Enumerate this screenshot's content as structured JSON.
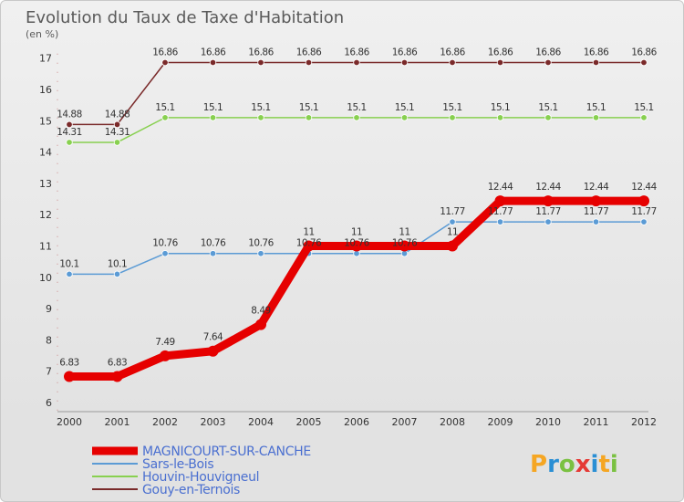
{
  "chart_data": {
    "type": "line",
    "title": "Evolution du Taux de Taxe d'Habitation",
    "subtitle": "(en %)",
    "x": [
      "2000",
      "2001",
      "2002",
      "2003",
      "2004",
      "2005",
      "2006",
      "2007",
      "2008",
      "2009",
      "2010",
      "2011",
      "2012"
    ],
    "ylim": [
      6,
      17
    ],
    "yticks": [
      6,
      7,
      8,
      9,
      10,
      11,
      12,
      13,
      14,
      15,
      16,
      17
    ],
    "grid": false,
    "legend_position": "bottom-left",
    "series": [
      {
        "name": "MAGNICOURT-SUR-CANCHE",
        "color": "#e60000",
        "width": 9,
        "values": [
          6.83,
          6.83,
          7.49,
          7.64,
          8.49,
          11,
          11,
          11,
          11,
          12.44,
          12.44,
          12.44,
          12.44
        ],
        "labels": [
          "6.83",
          "6.83",
          "7.49",
          "7.64",
          "8.49",
          "11",
          "11",
          "11",
          "11",
          "12.44",
          "12.44",
          "12.44",
          "12.44"
        ]
      },
      {
        "name": "Sars-le-Bois",
        "color": "#5b9bd5",
        "width": 1.5,
        "values": [
          10.1,
          10.1,
          10.76,
          10.76,
          10.76,
          10.76,
          10.76,
          10.76,
          11.77,
          11.77,
          11.77,
          11.77,
          11.77
        ],
        "labels": [
          "10.1",
          "10.1",
          "10.76",
          "10.76",
          "10.76",
          "10.76",
          "10.76",
          "10.76",
          "11.77",
          "11.77",
          "11.77",
          "11.77",
          "11.77"
        ]
      },
      {
        "name": "Houvin-Houvigneul",
        "color": "#88d050",
        "width": 1.5,
        "values": [
          14.31,
          14.31,
          15.1,
          15.1,
          15.1,
          15.1,
          15.1,
          15.1,
          15.1,
          15.1,
          15.1,
          15.1,
          15.1
        ],
        "labels": [
          "14.31",
          "14.31",
          "15.1",
          "15.1",
          "15.1",
          "15.1",
          "15.1",
          "15.1",
          "15.1",
          "15.1",
          "15.1",
          "15.1",
          "15.1"
        ]
      },
      {
        "name": "Gouy-en-Ternois",
        "color": "#7a2a2a",
        "width": 1.5,
        "values": [
          14.88,
          14.88,
          16.86,
          16.86,
          16.86,
          16.86,
          16.86,
          16.86,
          16.86,
          16.86,
          16.86,
          16.86,
          16.86
        ],
        "labels": [
          "14.88",
          "14.88",
          "16.86",
          "16.86",
          "16.86",
          "16.86",
          "16.86",
          "16.86",
          "16.86",
          "16.86",
          "16.86",
          "16.86",
          "16.86"
        ]
      }
    ]
  },
  "legend_text_color": "#4a6fd0",
  "logo": {
    "letters": [
      "P",
      "r",
      "o",
      "x",
      "i",
      "t",
      "i"
    ],
    "colors": [
      "#f5a623",
      "#2a8fd4",
      "#7ac142",
      "#e53935",
      "#2a8fd4",
      "#f5a623",
      "#7ac142"
    ]
  }
}
